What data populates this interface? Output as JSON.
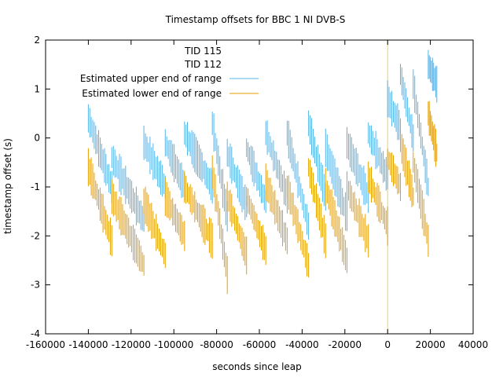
{
  "chart_data": {
    "type": "line",
    "title": "Timestamp offsets for BBC 1 NI DVB-S",
    "xlabel": "seconds since leap",
    "ylabel": "timestamp offset (s)",
    "xlim": [
      -160000,
      40000
    ],
    "ylim": [
      -4,
      2
    ],
    "x_ticks": [
      -160000,
      -140000,
      -120000,
      -100000,
      -80000,
      -60000,
      -40000,
      -20000,
      0,
      20000,
      40000
    ],
    "y_ticks": [
      -4,
      -3,
      -2,
      -1,
      0,
      1,
      2
    ],
    "x_tick_labels": [
      "-160000",
      "-140000",
      "-120000",
      "-100000",
      "-80000",
      "-60000",
      "-40000",
      "-20000",
      "0",
      "20000",
      "40000"
    ],
    "y_tick_labels": [
      "-4",
      "-3",
      "-2",
      "-1",
      "0",
      "1",
      "2"
    ],
    "grid": false,
    "legend_position": "top-left",
    "legend": [
      {
        "name": "TID 115",
        "color": "",
        "has_line": false
      },
      {
        "name": "TID 112",
        "color": "",
        "has_line": false
      },
      {
        "name": "Estimated upper end of range",
        "color": "#56b4e9",
        "has_line": true
      },
      {
        "name": "Estimated lower end of range",
        "color": "#e69f00",
        "has_line": true
      }
    ],
    "leap_marker": {
      "x": 0,
      "color": "#f0d060"
    },
    "series": [
      {
        "name": "Estimated upper end of range",
        "color": "#56b4e9",
        "segments": [
          {
            "x_start": -140000,
            "x_end": -129000,
            "y_start": 0.4,
            "y_end": -1.0
          },
          {
            "x_start": -129000,
            "x_end": -114000,
            "y_start": -0.4,
            "y_end": -1.7
          },
          {
            "x_start": -114000,
            "x_end": -104000,
            "y_start": -0.1,
            "y_end": -1.0
          },
          {
            "x_start": -104000,
            "x_end": -95000,
            "y_start": -0.1,
            "y_end": -1.0
          },
          {
            "x_start": -95000,
            "x_end": -82000,
            "y_start": 0.1,
            "y_end": -1.0
          },
          {
            "x_start": -82000,
            "x_end": -75000,
            "y_start": 0.3,
            "y_end": -1.6
          },
          {
            "x_start": -75000,
            "x_end": -66000,
            "y_start": -0.3,
            "y_end": -1.4
          },
          {
            "x_start": -66000,
            "x_end": -57000,
            "y_start": -0.2,
            "y_end": -1.3
          },
          {
            "x_start": -57000,
            "x_end": -47000,
            "y_start": 0.1,
            "y_end": -1.2
          },
          {
            "x_start": -47000,
            "x_end": -37000,
            "y_start": 0.1,
            "y_end": -1.8
          },
          {
            "x_start": -37000,
            "x_end": -29000,
            "y_start": 0.3,
            "y_end": -1.2
          },
          {
            "x_start": -29000,
            "x_end": -19000,
            "y_start": -0.2,
            "y_end": -1.6
          },
          {
            "x_start": -19000,
            "x_end": -9000,
            "y_start": -0.1,
            "y_end": -1.2
          },
          {
            "x_start": -9000,
            "x_end": 0,
            "y_start": 0.1,
            "y_end": -0.8
          },
          {
            "x_start": 0,
            "x_end": 6000,
            "y_start": 0.8,
            "y_end": 0.2
          },
          {
            "x_start": 6000,
            "x_end": 12000,
            "y_start": 1.3,
            "y_end": 0.0
          },
          {
            "x_start": 12000,
            "x_end": 19000,
            "y_start": 1.1,
            "y_end": -1.0
          },
          {
            "x_start": 19000,
            "x_end": 23000,
            "y_start": 1.5,
            "y_end": 1.1
          }
        ]
      },
      {
        "name": "Estimated lower end of range",
        "color": "#e69f00",
        "segments": [
          {
            "x_start": -140000,
            "x_end": -129000,
            "y_start": -0.6,
            "y_end": -2.1
          },
          {
            "x_start": -129000,
            "x_end": -114000,
            "y_start": -1.2,
            "y_end": -2.6
          },
          {
            "x_start": -114000,
            "x_end": -104000,
            "y_start": -1.3,
            "y_end": -2.4
          },
          {
            "x_start": -104000,
            "x_end": -95000,
            "y_start": -1.2,
            "y_end": -2.0
          },
          {
            "x_start": -95000,
            "x_end": -82000,
            "y_start": -1.0,
            "y_end": -2.1
          },
          {
            "x_start": -82000,
            "x_end": -75000,
            "y_start": -0.7,
            "y_end": -2.8
          },
          {
            "x_start": -75000,
            "x_end": -66000,
            "y_start": -1.2,
            "y_end": -2.4
          },
          {
            "x_start": -66000,
            "x_end": -57000,
            "y_start": -1.2,
            "y_end": -2.3
          },
          {
            "x_start": -57000,
            "x_end": -47000,
            "y_start": -0.9,
            "y_end": -2.1
          },
          {
            "x_start": -47000,
            "x_end": -37000,
            "y_start": -1.0,
            "y_end": -2.6
          },
          {
            "x_start": -37000,
            "x_end": -29000,
            "y_start": -0.6,
            "y_end": -2.1
          },
          {
            "x_start": -29000,
            "x_end": -19000,
            "y_start": -1.0,
            "y_end": -2.5
          },
          {
            "x_start": -19000,
            "x_end": -9000,
            "y_start": -1.0,
            "y_end": -2.1
          },
          {
            "x_start": -9000,
            "x_end": 0,
            "y_start": -0.8,
            "y_end": -1.8
          },
          {
            "x_start": 0,
            "x_end": 6000,
            "y_start": -0.4,
            "y_end": -1.0
          },
          {
            "x_start": 6000,
            "x_end": 12000,
            "y_start": -0.1,
            "y_end": -1.2
          },
          {
            "x_start": 12000,
            "x_end": 19000,
            "y_start": -0.5,
            "y_end": -2.1
          },
          {
            "x_start": 19000,
            "x_end": 23000,
            "y_start": 0.5,
            "y_end": -0.3
          }
        ]
      }
    ]
  }
}
